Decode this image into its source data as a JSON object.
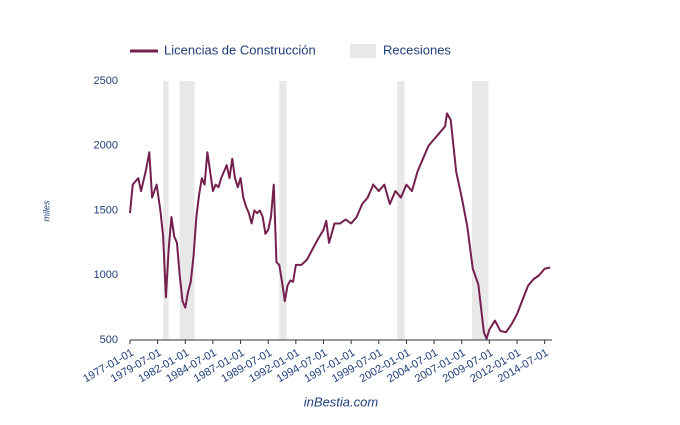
{
  "chart_data": {
    "type": "line",
    "y_label": "miles",
    "source": "inBestia.com",
    "x": [
      "1977-01-01",
      "1977-04-01",
      "1977-10-01",
      "1978-01-01",
      "1978-06-01",
      "1978-10-01",
      "1979-01-01",
      "1979-06-01",
      "1979-10-01",
      "1980-01-01",
      "1980-04-01",
      "1980-07-01",
      "1980-10-01",
      "1981-01-01",
      "1981-04-01",
      "1981-07-01",
      "1981-10-01",
      "1982-01-01",
      "1982-04-01",
      "1982-07-01",
      "1982-10-01",
      "1983-01-01",
      "1983-04-01",
      "1983-07-01",
      "1983-10-01",
      "1984-01-01",
      "1984-04-01",
      "1984-07-01",
      "1984-10-01",
      "1985-01-01",
      "1985-04-01",
      "1985-07-01",
      "1985-10-01",
      "1986-01-01",
      "1986-04-01",
      "1986-07-01",
      "1986-10-01",
      "1987-01-01",
      "1987-04-01",
      "1987-07-01",
      "1987-10-01",
      "1988-01-01",
      "1988-04-01",
      "1988-07-01",
      "1988-10-01",
      "1989-01-01",
      "1989-04-01",
      "1989-07-01",
      "1989-10-01",
      "1990-01-01",
      "1990-04-01",
      "1990-07-01",
      "1990-10-01",
      "1991-01-01",
      "1991-04-01",
      "1991-07-01",
      "1991-10-01",
      "1992-01-01",
      "1992-07-01",
      "1993-01-01",
      "1993-07-01",
      "1994-01-01",
      "1994-07-01",
      "1994-10-01",
      "1995-01-01",
      "1995-07-01",
      "1996-01-01",
      "1996-07-01",
      "1997-01-01",
      "1997-07-01",
      "1998-01-01",
      "1998-07-01",
      "1999-01-01",
      "1999-07-01",
      "2000-01-01",
      "2000-07-01",
      "2001-01-01",
      "2001-07-01",
      "2002-01-01",
      "2002-07-01",
      "2003-01-01",
      "2003-07-01",
      "2004-01-01",
      "2004-07-01",
      "2005-01-01",
      "2005-07-01",
      "2005-09-01",
      "2006-01-01",
      "2006-07-01",
      "2007-01-01",
      "2007-07-01",
      "2008-01-01",
      "2008-07-01",
      "2009-01-01",
      "2009-04-01",
      "2009-07-01",
      "2010-01-01",
      "2010-07-01",
      "2011-01-01",
      "2011-07-01",
      "2012-01-01",
      "2012-07-01",
      "2013-01-01",
      "2013-07-01",
      "2014-01-01",
      "2014-07-01",
      "2015-01-01"
    ],
    "series": [
      {
        "name": "Licencias de Construcción",
        "color": "#74204f",
        "values": [
          1480,
          1700,
          1750,
          1650,
          1800,
          1950,
          1600,
          1700,
          1500,
          1300,
          830,
          1200,
          1450,
          1300,
          1250,
          1000,
          800,
          750,
          870,
          950,
          1150,
          1450,
          1620,
          1750,
          1700,
          1950,
          1800,
          1650,
          1700,
          1680,
          1750,
          1800,
          1850,
          1750,
          1900,
          1750,
          1680,
          1750,
          1600,
          1530,
          1480,
          1400,
          1500,
          1480,
          1500,
          1450,
          1320,
          1350,
          1450,
          1700,
          1100,
          1080,
          950,
          800,
          920,
          960,
          950,
          1080,
          1080,
          1120,
          1200,
          1280,
          1350,
          1420,
          1250,
          1400,
          1400,
          1430,
          1400,
          1450,
          1550,
          1600,
          1700,
          1650,
          1700,
          1550,
          1650,
          1600,
          1700,
          1650,
          1800,
          1900,
          2000,
          2050,
          2100,
          2150,
          2250,
          2200,
          1800,
          1600,
          1380,
          1050,
          930,
          560,
          510,
          580,
          650,
          570,
          560,
          620,
          700,
          810,
          920,
          970,
          1000,
          1050,
          1060
        ]
      }
    ],
    "recessions": {
      "name": "Recesiones",
      "color": "#e8e8e8",
      "periods": [
        [
          "1980-01-01",
          "1980-07-01"
        ],
        [
          "1981-07-01",
          "1982-11-01"
        ],
        [
          "1990-07-01",
          "1991-03-01"
        ],
        [
          "2001-03-01",
          "2001-11-01"
        ],
        [
          "2007-12-01",
          "2009-06-01"
        ]
      ]
    },
    "xlim": [
      "1977-01-01",
      "2015-03-01"
    ],
    "xticks": [
      "1977-01-01",
      "1979-07-01",
      "1982-01-01",
      "1984-07-01",
      "1987-01-01",
      "1989-07-01",
      "1992-01-01",
      "1994-07-01",
      "1997-01-01",
      "1999-07-01",
      "2002-01-01",
      "2004-07-01",
      "2007-01-01",
      "2009-07-01",
      "2012-01-01",
      "2014-07-01"
    ],
    "ylim": [
      500,
      2500
    ],
    "yticks": [
      500,
      1000,
      1500,
      2000,
      2500
    ],
    "grid": false
  }
}
